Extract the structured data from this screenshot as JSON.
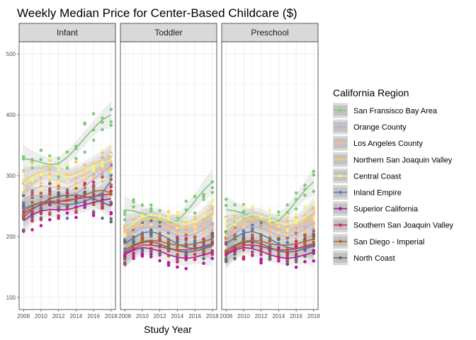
{
  "chart_data": {
    "type": "scatter",
    "title": "Weekly Median Price for Center-Based Childcare ($)",
    "xlabel": "Study Year",
    "ylabel": "",
    "facets": [
      "Infant",
      "Toddler",
      "Preschool"
    ],
    "x_ticks": [
      2008,
      2010,
      2012,
      2014,
      2016,
      2018
    ],
    "y_ticks": [
      100,
      200,
      300,
      400,
      500
    ],
    "xlim": [
      2007.5,
      2018.5
    ],
    "ylim": [
      80,
      520
    ],
    "grid": true,
    "smooth": "loess with confidence band",
    "legend": {
      "title": "California Region",
      "placement": "right"
    },
    "series": [
      {
        "name": "San Fransisco Bay Area",
        "color": "#7fc97f",
        "curves": {
          "Infant": [
            328,
            326,
            322,
            318,
            320,
            330,
            345,
            362,
            378,
            392,
            400
          ],
          "Toddler": [
            244,
            242,
            238,
            232,
            226,
            222,
            226,
            240,
            258,
            276,
            290
          ],
          "Preschool": [
            244,
            242,
            238,
            232,
            226,
            222,
            226,
            240,
            258,
            276,
            290
          ]
        }
      },
      {
        "name": "Orange County",
        "color": "#beaed4",
        "curves": {
          "Infant": [
            262,
            266,
            268,
            266,
            262,
            262,
            270,
            282,
            294,
            306,
            315
          ],
          "Toddler": [
            196,
            206,
            214,
            216,
            214,
            208,
            202,
            200,
            204,
            212,
            222
          ],
          "Preschool": [
            196,
            206,
            214,
            216,
            214,
            208,
            202,
            200,
            204,
            212,
            222
          ]
        }
      },
      {
        "name": "Los Angeles County",
        "color": "#f4b89a",
        "curves": {
          "Infant": [
            272,
            278,
            282,
            282,
            280,
            280,
            286,
            294,
            304,
            312,
            318
          ],
          "Toddler": [
            198,
            208,
            218,
            222,
            220,
            214,
            208,
            206,
            210,
            218,
            230
          ],
          "Preschool": [
            198,
            208,
            218,
            222,
            220,
            214,
            208,
            206,
            210,
            218,
            230
          ]
        }
      },
      {
        "name": "Northern San Joaquin Valley",
        "color": "#fdc86e",
        "curves": {
          "Infant": [
            292,
            300,
            306,
            306,
            302,
            300,
            305,
            312,
            320,
            326,
            330
          ],
          "Toddler": [
            206,
            216,
            226,
            230,
            228,
            222,
            216,
            214,
            218,
            226,
            234
          ],
          "Preschool": [
            206,
            216,
            226,
            230,
            228,
            222,
            216,
            214,
            218,
            226,
            234
          ]
        }
      },
      {
        "name": "Central Coast",
        "color": "#f3f38e",
        "curves": {
          "Infant": [
            286,
            296,
            304,
            306,
            302,
            298,
            300,
            306,
            314,
            320,
            326
          ],
          "Toddler": [
            212,
            222,
            232,
            236,
            234,
            228,
            222,
            220,
            224,
            232,
            242
          ],
          "Preschool": [
            212,
            222,
            232,
            236,
            234,
            228,
            222,
            220,
            224,
            232,
            242
          ]
        }
      },
      {
        "name": "Inland Empire",
        "color": "#4f7fb8",
        "curves": {
          "Infant": [
            246,
            252,
            256,
            256,
            254,
            252,
            254,
            258,
            264,
            272,
            292
          ],
          "Toddler": [
            188,
            198,
            206,
            208,
            204,
            196,
            188,
            182,
            180,
            182,
            186
          ],
          "Preschool": [
            188,
            198,
            206,
            208,
            204,
            196,
            188,
            182,
            180,
            182,
            186
          ]
        }
      },
      {
        "name": "Superior California",
        "color": "#b5179e",
        "curves": {
          "Infant": [
            226,
            236,
            242,
            244,
            244,
            244,
            248,
            252,
            256,
            260,
            262
          ],
          "Toddler": [
            170,
            178,
            182,
            180,
            176,
            170,
            166,
            164,
            166,
            170,
            174
          ],
          "Preschool": [
            170,
            178,
            182,
            180,
            176,
            170,
            166,
            164,
            166,
            170,
            174
          ]
        }
      },
      {
        "name": "Southern San Joaquin Valley",
        "color": "#d62f56",
        "curves": {
          "Infant": [
            238,
            246,
            252,
            256,
            258,
            260,
            262,
            264,
            266,
            268,
            270
          ],
          "Toddler": [
            172,
            180,
            186,
            186,
            184,
            180,
            178,
            178,
            180,
            184,
            188
          ],
          "Preschool": [
            172,
            180,
            186,
            186,
            184,
            180,
            178,
            178,
            180,
            184,
            188
          ]
        }
      },
      {
        "name": "San Diego - Imperial",
        "color": "#b26a2c",
        "curves": {
          "Infant": [
            242,
            250,
            256,
            258,
            258,
            258,
            262,
            268,
            274,
            276,
            272
          ],
          "Toddler": [
            178,
            186,
            192,
            194,
            192,
            188,
            186,
            186,
            188,
            192,
            196
          ],
          "Preschool": [
            178,
            186,
            192,
            194,
            192,
            188,
            186,
            186,
            188,
            192,
            196
          ]
        }
      },
      {
        "name": "North Coast",
        "color": "#6b6b6b",
        "curves": {
          "Infant": [
            232,
            244,
            254,
            262,
            266,
            268,
            268,
            266,
            262,
            256,
            250
          ],
          "Toddler": [
            174,
            184,
            190,
            192,
            188,
            182,
            176,
            174,
            176,
            180,
            184
          ],
          "Preschool": [
            174,
            184,
            190,
            192,
            188,
            182,
            176,
            174,
            176,
            180,
            184
          ]
        }
      }
    ]
  }
}
